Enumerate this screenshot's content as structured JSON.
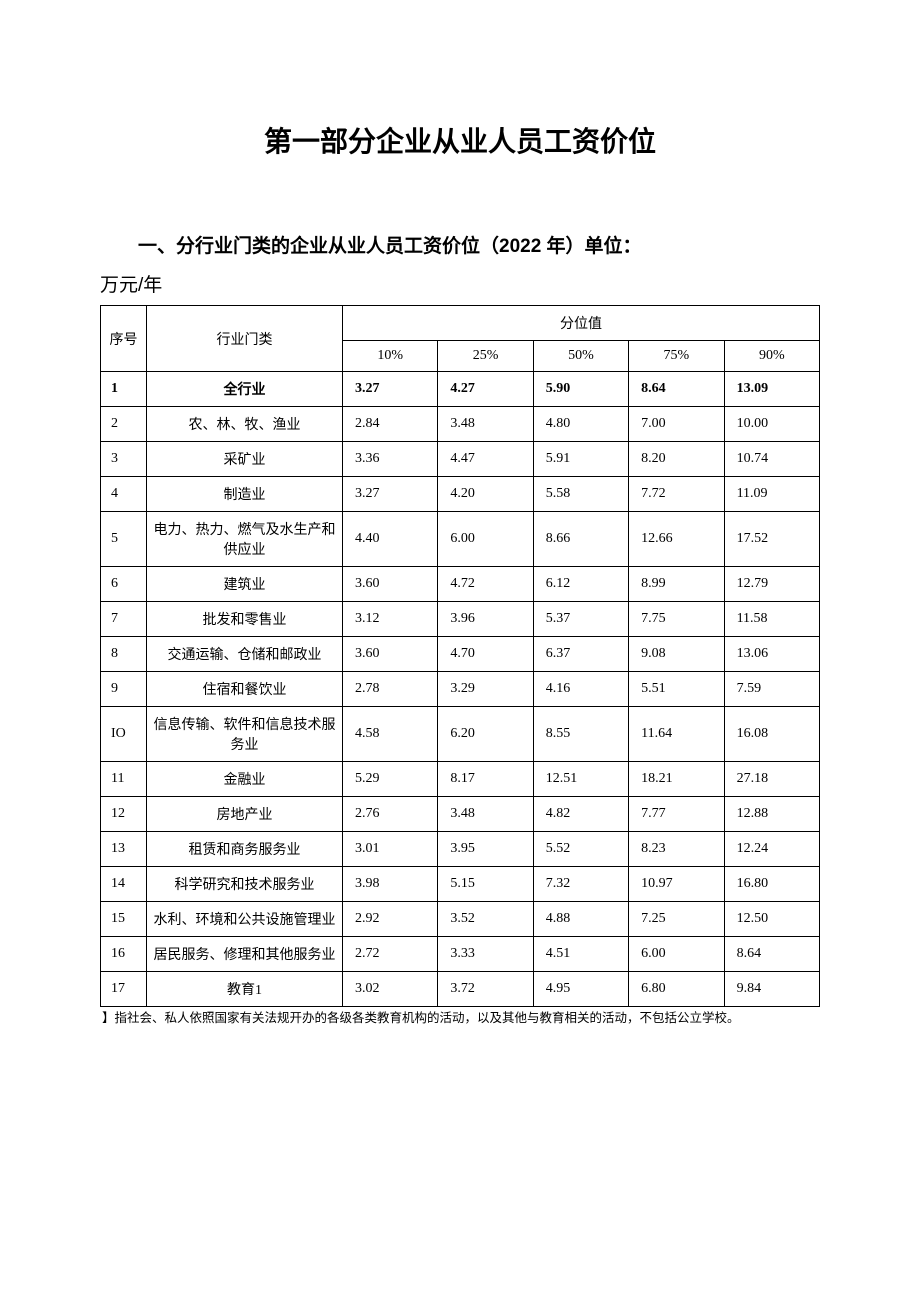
{
  "title": "第一部分企业从业人员工资价位",
  "subtitle": "一、分行业门类的企业从业人员工资价位（2022 年）单位：",
  "unit": "万元/年",
  "table": {
    "headers": {
      "seq": "序号",
      "category": "行业门类",
      "percentile_group": "分位值",
      "percentiles": [
        "10%",
        "25%",
        "50%",
        "75%",
        "90%"
      ]
    },
    "rows": [
      {
        "seq": "1",
        "category": "全行业",
        "values": [
          "3.27",
          "4.27",
          "5.90",
          "8.64",
          "13.09"
        ],
        "bold": true
      },
      {
        "seq": "2",
        "category": "农、林、牧、渔业",
        "values": [
          "2.84",
          "3.48",
          "4.80",
          "7.00",
          "10.00"
        ]
      },
      {
        "seq": "3",
        "category": "采矿业",
        "values": [
          "3.36",
          "4.47",
          "5.91",
          "8.20",
          "10.74"
        ]
      },
      {
        "seq": "4",
        "category": "制造业",
        "values": [
          "3.27",
          "4.20",
          "5.58",
          "7.72",
          "11.09"
        ]
      },
      {
        "seq": "5",
        "category": "电力、热力、燃气及水生产和供应业",
        "values": [
          "4.40",
          "6.00",
          "8.66",
          "12.66",
          "17.52"
        ],
        "tall": true
      },
      {
        "seq": "6",
        "category": "建筑业",
        "values": [
          "3.60",
          "4.72",
          "6.12",
          "8.99",
          "12.79"
        ]
      },
      {
        "seq": "7",
        "category": "批发和零售业",
        "values": [
          "3.12",
          "3.96",
          "5.37",
          "7.75",
          "11.58"
        ]
      },
      {
        "seq": "8",
        "category": "交通运输、仓储和邮政业",
        "values": [
          "3.60",
          "4.70",
          "6.37",
          "9.08",
          "13.06"
        ]
      },
      {
        "seq": "9",
        "category": "住宿和餐饮业",
        "values": [
          "2.78",
          "3.29",
          "4.16",
          "5.51",
          "7.59"
        ]
      },
      {
        "seq": "IO",
        "category": "信息传输、软件和信息技术服务业",
        "values": [
          "4.58",
          "6.20",
          "8.55",
          "11.64",
          "16.08"
        ],
        "tall": true
      },
      {
        "seq": "11",
        "category": "金融业",
        "values": [
          "5.29",
          "8.17",
          "12.51",
          "18.21",
          "27.18"
        ]
      },
      {
        "seq": "12",
        "category": "房地产业",
        "values": [
          "2.76",
          "3.48",
          "4.82",
          "7.77",
          "12.88"
        ]
      },
      {
        "seq": "13",
        "category": "租赁和商务服务业",
        "values": [
          "3.01",
          "3.95",
          "5.52",
          "8.23",
          "12.24"
        ]
      },
      {
        "seq": "14",
        "category": "科学研究和技术服务业",
        "values": [
          "3.98",
          "5.15",
          "7.32",
          "10.97",
          "16.80"
        ]
      },
      {
        "seq": "15",
        "category": "水利、环境和公共设施管理业",
        "values": [
          "2.92",
          "3.52",
          "4.88",
          "7.25",
          "12.50"
        ]
      },
      {
        "seq": "16",
        "category": "居民服务、修理和其他服务业",
        "values": [
          "2.72",
          "3.33",
          "4.51",
          "6.00",
          "8.64"
        ]
      },
      {
        "seq": "17",
        "category": "教育1",
        "values": [
          "3.02",
          "3.72",
          "4.95",
          "6.80",
          "9.84"
        ]
      }
    ]
  },
  "footnote": "】指社会、私人依照国家有关法规开办的各级各类教育机构的活动，以及其他与教育相关的活动，不包括公立学校。"
}
